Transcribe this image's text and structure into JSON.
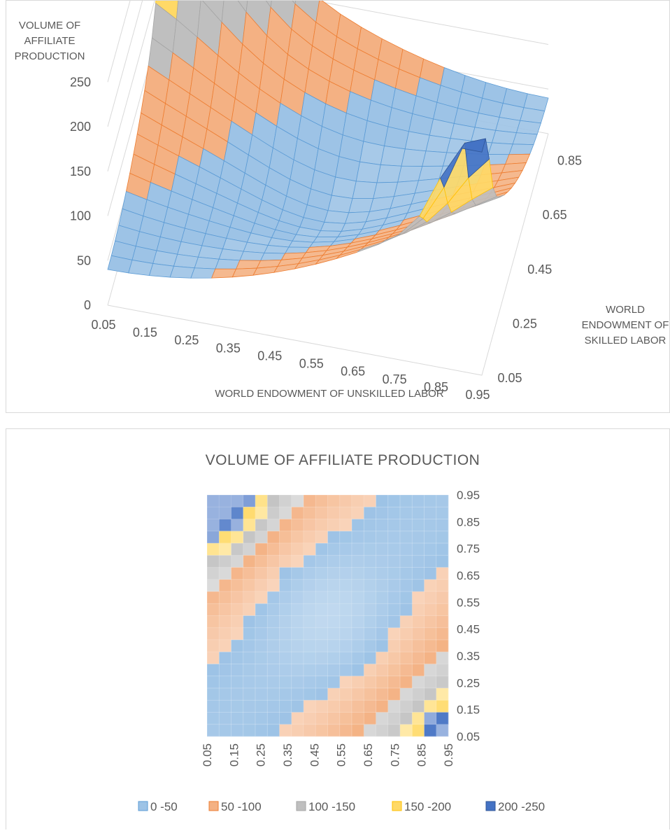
{
  "chart_data": [
    {
      "type": "surface-3d",
      "zlabel": "VOLUME OF AFFILIATE PRODUCTION",
      "xlabel": "WORLD ENDOWMENT OF UNSKILLED LABOR",
      "ylabel": "WORLD ENDOWMENT OF SKILLED LABOR",
      "z_ticks": [
        "0",
        "50",
        "100",
        "150",
        "200",
        "250"
      ],
      "x_ticks": [
        "0.05",
        "0.15",
        "0.25",
        "0.35",
        "0.45",
        "0.55",
        "0.65",
        "0.75",
        "0.85",
        "0.95"
      ],
      "y_ticks": [
        "0.05",
        "0.25",
        "0.45",
        "0.65",
        "0.85"
      ],
      "zlim": [
        0,
        250
      ]
    },
    {
      "type": "contour",
      "title": "VOLUME OF AFFILIATE PRODUCTION",
      "x_ticks": [
        "0.05",
        "0.15",
        "0.25",
        "0.35",
        "0.45",
        "0.55",
        "0.65",
        "0.75",
        "0.85",
        "0.95"
      ],
      "y_ticks": [
        "0.05",
        "0.15",
        "0.25",
        "0.35",
        "0.45",
        "0.55",
        "0.65",
        "0.75",
        "0.85",
        "0.95"
      ],
      "grid_steps": 0.05,
      "legend": {
        "placement": "bottom",
        "entries": [
          {
            "label": "0 -50",
            "color": "#9dc3e6"
          },
          {
            "label": "50 -100",
            "color": "#f4b183"
          },
          {
            "label": "100 -150",
            "color": "#bfbfbf"
          },
          {
            "label": "150 -200",
            "color": "#ffd966"
          },
          {
            "label": "200 -250",
            "color": "#4472c4"
          }
        ]
      }
    }
  ]
}
